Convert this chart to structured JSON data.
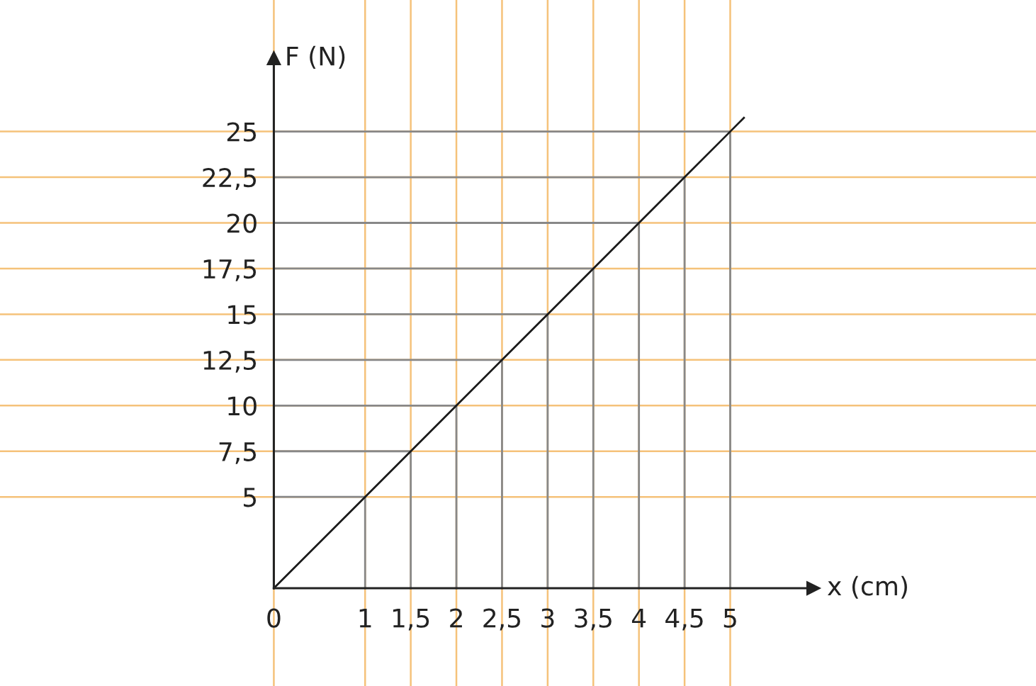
{
  "chart_data": {
    "type": "line",
    "xlabel": "x (cm)",
    "ylabel": "F (N)",
    "series": [
      {
        "color": "#888888",
        "x": [
          1,
          1,
          0
        ],
        "values": [
          0,
          5,
          5
        ]
      },
      {
        "color": "#888888",
        "x": [
          1.5,
          1.5,
          0
        ],
        "values": [
          0,
          7.5,
          7.5
        ]
      },
      {
        "color": "#888888",
        "x": [
          2,
          2,
          0
        ],
        "values": [
          0,
          10,
          10
        ]
      },
      {
        "color": "#888888",
        "x": [
          2.5,
          2.5,
          0
        ],
        "values": [
          0,
          12.5,
          12.5
        ]
      },
      {
        "color": "#888888",
        "x": [
          3,
          3,
          0
        ],
        "values": [
          0,
          15,
          15
        ]
      },
      {
        "color": "#888888",
        "x": [
          3.5,
          3.5,
          0
        ],
        "values": [
          0,
          17.5,
          17.5
        ]
      },
      {
        "color": "#888888",
        "x": [
          4,
          4,
          0
        ],
        "values": [
          0,
          20,
          20
        ]
      },
      {
        "color": "#888888",
        "x": [
          4.5,
          4.5,
          0
        ],
        "values": [
          0,
          22.5,
          22.5
        ]
      },
      {
        "color": "#888888",
        "x": [
          5,
          5,
          0
        ],
        "values": [
          0,
          25,
          25
        ]
      },
      {
        "color": "#1a1a1a",
        "x": [
          0,
          1,
          1.5,
          2,
          2.5,
          3,
          3.5,
          4,
          4.5,
          5,
          5.15
        ],
        "values": [
          0,
          5,
          7.5,
          10,
          12.5,
          15,
          17.5,
          20,
          22.5,
          25,
          25.75
        ]
      }
    ],
    "xlim": [
      -3,
      8.35
    ],
    "ylim": [
      -5.35,
      32.2
    ],
    "xticks": [
      0,
      1,
      {
        "value": 1.5,
        "label": "1,5"
      },
      2,
      {
        "value": 2.5,
        "label": "2,5"
      },
      3,
      {
        "value": 3.5,
        "label": "3,5"
      },
      4,
      {
        "value": 4.5,
        "label": "4,5"
      },
      5
    ],
    "yticks": [
      5,
      {
        "value": 7.5,
        "label": "7,5"
      },
      10,
      {
        "value": 12.5,
        "label": "12,5"
      },
      15,
      {
        "value": 17.5,
        "label": "17,5"
      },
      20,
      {
        "value": 22.5,
        "label": "22,5"
      },
      25
    ],
    "grid": true,
    "marker": "none",
    "line_style": "solid"
  }
}
